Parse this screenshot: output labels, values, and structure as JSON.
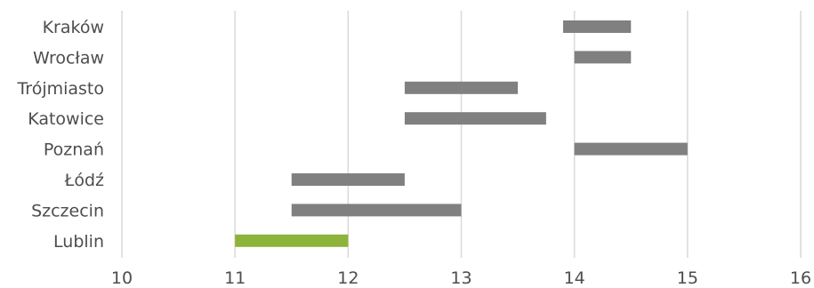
{
  "chart_data": {
    "type": "bar",
    "orientation": "horizontal-range",
    "categories": [
      "Kraków",
      "Wrocław",
      "Trójmiasto",
      "Katowice",
      "Poznań",
      "Łódź",
      "Szczecin",
      "Lublin"
    ],
    "ranges": [
      [
        13.9,
        14.5
      ],
      [
        14.0,
        14.5
      ],
      [
        12.5,
        13.5
      ],
      [
        12.5,
        13.75
      ],
      [
        14.0,
        15.0
      ],
      [
        11.5,
        12.5
      ],
      [
        11.5,
        13.0
      ],
      [
        11.0,
        12.0
      ]
    ],
    "highlight": "Lublin",
    "xlim": [
      10,
      16
    ],
    "xticks": [
      10,
      11,
      12,
      13,
      14,
      15,
      16
    ],
    "title": "",
    "xlabel": "",
    "ylabel": "",
    "grid": "vertical",
    "colors": {
      "bar": "#808080",
      "highlight": "#8db33a",
      "grid": "#d9d9d9",
      "text": "#4d4d4d"
    }
  }
}
